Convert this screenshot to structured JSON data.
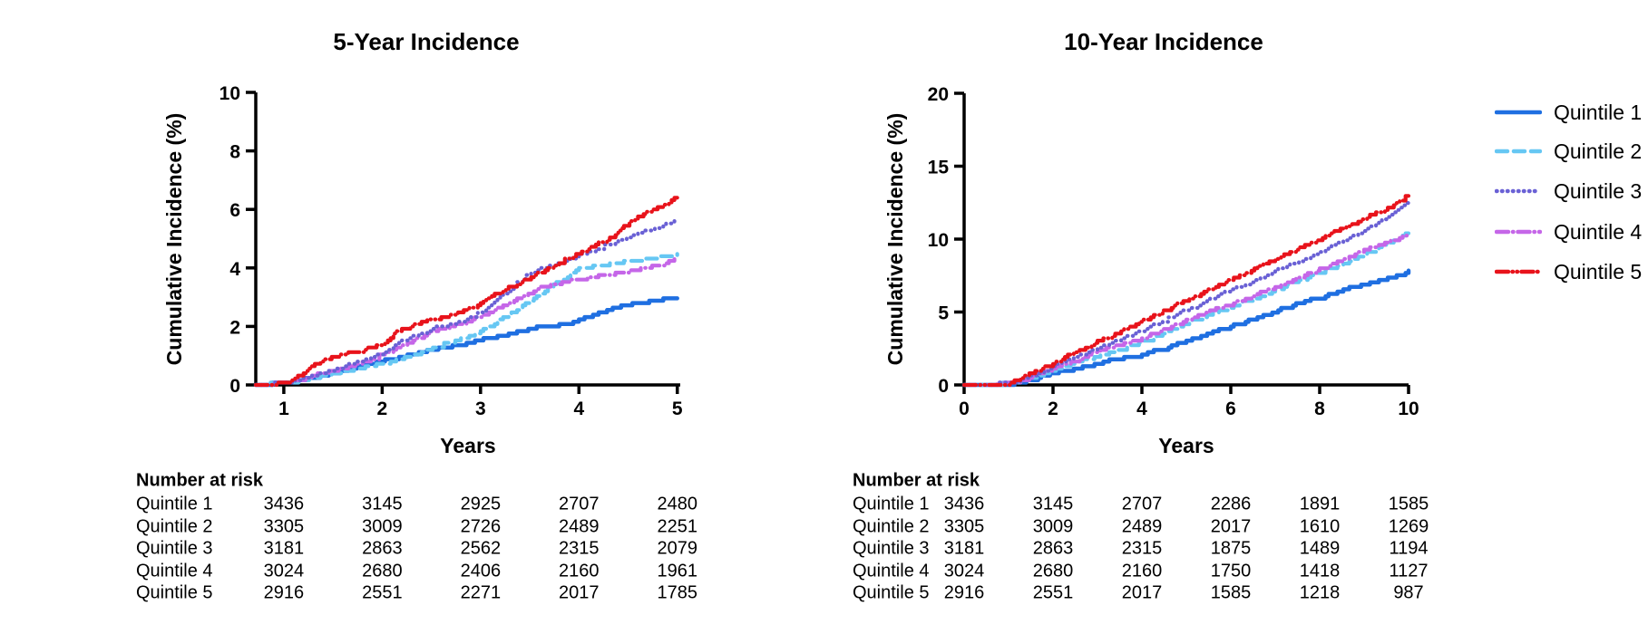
{
  "page": {
    "background": "#ffffff"
  },
  "legend": {
    "position": "right",
    "items": [
      {
        "label": "Quintile 1",
        "color": "#1F6FE1",
        "dash": "solid"
      },
      {
        "label": "Quintile 2",
        "color": "#66C7F3",
        "dash": "dash"
      },
      {
        "label": "Quintile 3",
        "color": "#6A61D5",
        "dash": "dot"
      },
      {
        "label": "Quintile 4",
        "color": "#C566E8",
        "dash": "dash-dot"
      },
      {
        "label": "Quintile 5",
        "color": "#E8131B",
        "dash": "dash-dot-dot"
      }
    ]
  },
  "chart_data": [
    {
      "type": "line",
      "title": "5-Year Incidence",
      "xlabel": "Years",
      "ylabel": "Cumulative Incidence (%)",
      "xlim": [
        0.715,
        5.03
      ],
      "ylim": [
        0,
        10
      ],
      "xticks": [
        1,
        2,
        3,
        4,
        5
      ],
      "yticks": [
        0,
        2,
        4,
        6,
        8,
        10
      ],
      "grid": false,
      "series": [
        {
          "name": "Quintile 1",
          "color": "#1F6FE1",
          "dash": "solid",
          "points": [
            [
              0.715,
              0
            ],
            [
              1.0,
              0.03
            ],
            [
              1.2,
              0.15
            ],
            [
              1.5,
              0.42
            ],
            [
              1.8,
              0.65
            ],
            [
              2.0,
              0.82
            ],
            [
              2.3,
              1.05
            ],
            [
              2.6,
              1.25
            ],
            [
              3.0,
              1.52
            ],
            [
              3.3,
              1.72
            ],
            [
              3.6,
              1.98
            ],
            [
              3.9,
              2.1
            ],
            [
              4.1,
              2.35
            ],
            [
              4.35,
              2.6
            ],
            [
              4.6,
              2.82
            ],
            [
              4.8,
              2.87
            ],
            [
              5.0,
              2.95
            ]
          ]
        },
        {
          "name": "Quintile 2",
          "color": "#66C7F3",
          "dash": "dash",
          "points": [
            [
              0.715,
              0
            ],
            [
              1.05,
              0.05
            ],
            [
              1.3,
              0.22
            ],
            [
              1.6,
              0.45
            ],
            [
              2.0,
              0.72
            ],
            [
              2.3,
              1.0
            ],
            [
              2.6,
              1.35
            ],
            [
              2.9,
              1.7
            ],
            [
              3.1,
              2.0
            ],
            [
              3.35,
              2.55
            ],
            [
              3.6,
              3.1
            ],
            [
              3.8,
              3.55
            ],
            [
              4.0,
              3.95
            ],
            [
              4.2,
              4.1
            ],
            [
              4.5,
              4.2
            ],
            [
              4.75,
              4.3
            ],
            [
              5.0,
              4.42
            ]
          ]
        },
        {
          "name": "Quintile 4",
          "color": "#C566E8",
          "dash": "dash-dot",
          "points": [
            [
              0.715,
              0
            ],
            [
              1.05,
              0.06
            ],
            [
              1.3,
              0.3
            ],
            [
              1.6,
              0.55
            ],
            [
              2.0,
              1.0
            ],
            [
              2.3,
              1.5
            ],
            [
              2.5,
              1.8
            ],
            [
              2.8,
              2.1
            ],
            [
              3.0,
              2.35
            ],
            [
              3.3,
              2.8
            ],
            [
              3.6,
              3.3
            ],
            [
              3.9,
              3.55
            ],
            [
              4.2,
              3.7
            ],
            [
              4.5,
              3.9
            ],
            [
              4.75,
              4.05
            ],
            [
              5.0,
              4.28
            ]
          ]
        },
        {
          "name": "Quintile 3",
          "color": "#6A61D5",
          "dash": "dot",
          "points": [
            [
              0.715,
              0
            ],
            [
              1.05,
              0.06
            ],
            [
              1.3,
              0.3
            ],
            [
              1.6,
              0.6
            ],
            [
              2.0,
              1.05
            ],
            [
              2.2,
              1.5
            ],
            [
              2.5,
              1.9
            ],
            [
              2.8,
              2.15
            ],
            [
              3.0,
              2.45
            ],
            [
              3.2,
              3.0
            ],
            [
              3.5,
              3.85
            ],
            [
              3.8,
              4.15
            ],
            [
              4.0,
              4.4
            ],
            [
              4.3,
              4.8
            ],
            [
              4.6,
              5.15
            ],
            [
              4.8,
              5.4
            ],
            [
              5.0,
              5.62
            ]
          ]
        },
        {
          "name": "Quintile 5",
          "color": "#E8131B",
          "dash": "dash-dot-dot",
          "points": [
            [
              0.715,
              0
            ],
            [
              1.0,
              0.04
            ],
            [
              1.15,
              0.3
            ],
            [
              1.3,
              0.7
            ],
            [
              1.5,
              0.95
            ],
            [
              1.7,
              1.1
            ],
            [
              2.0,
              1.35
            ],
            [
              2.15,
              1.8
            ],
            [
              2.3,
              2.05
            ],
            [
              2.6,
              2.3
            ],
            [
              2.9,
              2.6
            ],
            [
              3.1,
              3.0
            ],
            [
              3.4,
              3.5
            ],
            [
              3.7,
              4.0
            ],
            [
              4.0,
              4.5
            ],
            [
              4.3,
              5.0
            ],
            [
              4.5,
              5.5
            ],
            [
              4.7,
              5.9
            ],
            [
              4.85,
              6.1
            ],
            [
              5.0,
              6.42
            ]
          ]
        }
      ],
      "number_at_risk": {
        "title": "Number at risk",
        "timepoints": [
          1,
          2,
          3,
          4,
          5
        ],
        "rows": [
          {
            "label": "Quintile 1",
            "values": [
              3436,
              3145,
              2925,
              2707,
              2480
            ]
          },
          {
            "label": "Quintile 2",
            "values": [
              3305,
              3009,
              2726,
              2489,
              2251
            ]
          },
          {
            "label": "Quintile 3",
            "values": [
              3181,
              2863,
              2562,
              2315,
              2079
            ]
          },
          {
            "label": "Quintile 4",
            "values": [
              3024,
              2680,
              2406,
              2160,
              1961
            ]
          },
          {
            "label": "Quintile 5",
            "values": [
              2916,
              2551,
              2271,
              2017,
              1785
            ]
          }
        ]
      }
    },
    {
      "type": "line",
      "title": "10-Year Incidence",
      "xlabel": "Years",
      "ylabel": "Cumulative Incidence (%)",
      "xlim": [
        0,
        10
      ],
      "ylim": [
        0,
        20
      ],
      "xticks": [
        0,
        2,
        4,
        6,
        8,
        10
      ],
      "yticks": [
        0,
        5,
        10,
        15,
        20
      ],
      "grid": false,
      "series": [
        {
          "name": "Quintile 1",
          "color": "#1F6FE1",
          "dash": "solid",
          "points": [
            [
              0,
              0
            ],
            [
              1.0,
              0.02
            ],
            [
              1.5,
              0.35
            ],
            [
              2,
              0.75
            ],
            [
              2.5,
              1.1
            ],
            [
              3,
              1.5
            ],
            [
              3.5,
              1.8
            ],
            [
              3.8,
              1.85
            ],
            [
              4,
              2.1
            ],
            [
              4.5,
              2.5
            ],
            [
              5,
              3.0
            ],
            [
              5.5,
              3.5
            ],
            [
              6,
              4.0
            ],
            [
              6.5,
              4.5
            ],
            [
              7,
              5.0
            ],
            [
              7.5,
              5.6
            ],
            [
              8,
              6.0
            ],
            [
              8.5,
              6.5
            ],
            [
              9,
              6.9
            ],
            [
              9.5,
              7.3
            ],
            [
              9.8,
              7.5
            ],
            [
              10,
              7.8
            ]
          ]
        },
        {
          "name": "Quintile 2",
          "color": "#66C7F3",
          "dash": "dash",
          "points": [
            [
              0,
              0
            ],
            [
              1.05,
              0.05
            ],
            [
              1.5,
              0.5
            ],
            [
              2,
              1.0
            ],
            [
              2.5,
              1.5
            ],
            [
              3,
              1.95
            ],
            [
              3.5,
              2.4
            ],
            [
              4,
              2.9
            ],
            [
              4.5,
              3.5
            ],
            [
              5,
              4.2
            ],
            [
              5.5,
              4.8
            ],
            [
              6,
              5.3
            ],
            [
              6.5,
              5.9
            ],
            [
              7,
              6.5
            ],
            [
              7.5,
              7.1
            ],
            [
              8,
              7.7
            ],
            [
              8.5,
              8.3
            ],
            [
              9,
              8.9
            ],
            [
              9.5,
              9.7
            ],
            [
              10,
              10.45
            ]
          ]
        },
        {
          "name": "Quintile 4",
          "color": "#C566E8",
          "dash": "dash-dot",
          "points": [
            [
              0,
              0
            ],
            [
              1.05,
              0.05
            ],
            [
              1.5,
              0.55
            ],
            [
              2,
              1.1
            ],
            [
              2.5,
              1.7
            ],
            [
              3,
              2.3
            ],
            [
              3.5,
              2.75
            ],
            [
              4,
              3.2
            ],
            [
              4.5,
              3.8
            ],
            [
              5,
              4.4
            ],
            [
              5.5,
              5.0
            ],
            [
              6,
              5.5
            ],
            [
              6.5,
              6.1
            ],
            [
              7,
              6.7
            ],
            [
              7.5,
              7.3
            ],
            [
              8,
              7.9
            ],
            [
              8.5,
              8.5
            ],
            [
              9,
              9.2
            ],
            [
              9.5,
              9.8
            ],
            [
              10,
              10.3
            ]
          ]
        },
        {
          "name": "Quintile 3",
          "color": "#6A61D5",
          "dash": "dot",
          "points": [
            [
              0,
              0
            ],
            [
              1.05,
              0.05
            ],
            [
              1.5,
              0.6
            ],
            [
              2,
              1.2
            ],
            [
              2.5,
              1.9
            ],
            [
              3,
              2.5
            ],
            [
              3.5,
              3.1
            ],
            [
              4,
              3.75
            ],
            [
              4.5,
              4.4
            ],
            [
              5,
              5.1
            ],
            [
              5.5,
              5.8
            ],
            [
              6,
              6.5
            ],
            [
              6.5,
              7.1
            ],
            [
              7,
              7.8
            ],
            [
              7.5,
              8.4
            ],
            [
              8,
              9.1
            ],
            [
              8.5,
              9.8
            ],
            [
              9,
              10.6
            ],
            [
              9.5,
              11.5
            ],
            [
              10,
              12.55
            ]
          ]
        },
        {
          "name": "Quintile 5",
          "color": "#E8131B",
          "dash": "dash-dot-dot",
          "points": [
            [
              0,
              0
            ],
            [
              1.0,
              0.03
            ],
            [
              1.3,
              0.5
            ],
            [
              1.6,
              0.95
            ],
            [
              2,
              1.5
            ],
            [
              2.5,
              2.2
            ],
            [
              3,
              2.95
            ],
            [
              3.5,
              3.6
            ],
            [
              4,
              4.35
            ],
            [
              4.5,
              5.05
            ],
            [
              5,
              5.75
            ],
            [
              5.5,
              6.5
            ],
            [
              6,
              7.2
            ],
            [
              6.5,
              7.9
            ],
            [
              7,
              8.6
            ],
            [
              7.5,
              9.3
            ],
            [
              8,
              10.0
            ],
            [
              8.5,
              10.7
            ],
            [
              9,
              11.4
            ],
            [
              9.5,
              12.1
            ],
            [
              10,
              13.0
            ]
          ]
        }
      ],
      "number_at_risk": {
        "title": "Number at risk",
        "timepoints": [
          0,
          2,
          4,
          6,
          8,
          10
        ],
        "rows": [
          {
            "label": "Quintile 1",
            "values": [
              3436,
              3145,
              2707,
              2286,
              1891,
              1585
            ]
          },
          {
            "label": "Quintile 2",
            "values": [
              3305,
              3009,
              2489,
              2017,
              1610,
              1269
            ]
          },
          {
            "label": "Quintile 3",
            "values": [
              3181,
              2863,
              2315,
              1875,
              1489,
              1194
            ]
          },
          {
            "label": "Quintile 4",
            "values": [
              3024,
              2680,
              2160,
              1750,
              1418,
              1127
            ]
          },
          {
            "label": "Quintile 5",
            "values": [
              2916,
              2551,
              2017,
              1585,
              1218,
              987
            ]
          }
        ]
      }
    }
  ]
}
